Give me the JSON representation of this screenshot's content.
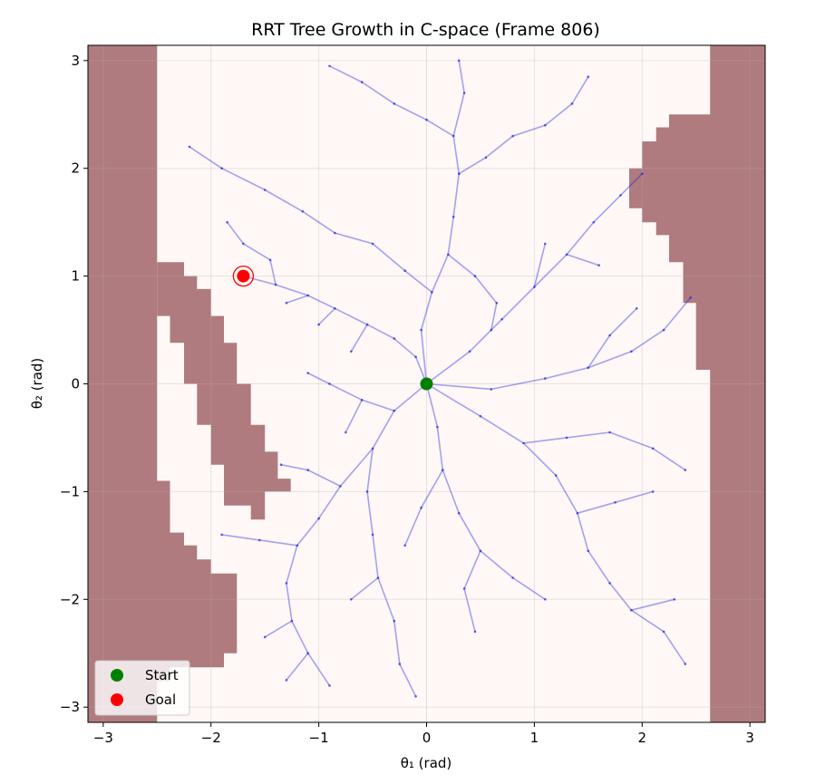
{
  "chart_data": {
    "type": "scatter",
    "title": "RRT Tree Growth in C-space (Frame 806)",
    "xlabel": "θ₁ (rad)",
    "ylabel": "θ₂ (rad)",
    "xlim": [
      -3.1416,
      3.1416
    ],
    "ylim": [
      -3.1416,
      3.1416
    ],
    "xticks": [
      -3,
      -2,
      -1,
      0,
      1,
      2,
      3
    ],
    "yticks": [
      -3,
      -2,
      -1,
      0,
      1,
      2,
      3
    ],
    "xticklabels": [
      "−3",
      "−2",
      "−1",
      "0",
      "1",
      "2",
      "3"
    ],
    "yticklabels": [
      "−3",
      "−2",
      "−1",
      "0",
      "1",
      "2",
      "3"
    ],
    "grid": true,
    "legend": {
      "location": "lower-left",
      "entries": [
        "Start",
        "Goal"
      ]
    },
    "colors": {
      "free_space": "#fff8f6",
      "obstacle": "#b07b7e",
      "tree_edge": "#1f1fe0",
      "start": "#008000",
      "goal": "#ff0000"
    },
    "start": [
      0,
      0
    ],
    "goal": [
      -1.7,
      1.0
    ],
    "obstacles": [
      {
        "name": "left-wall",
        "points": [
          [
            -3.1416,
            3.1416
          ],
          [
            -2.5,
            3.1416
          ],
          [
            -2.5,
            -0.9
          ],
          [
            -2.38,
            -0.9
          ],
          [
            -2.38,
            -1.38
          ],
          [
            -2.25,
            -1.38
          ],
          [
            -2.25,
            -1.5
          ],
          [
            -2.13,
            -1.5
          ],
          [
            -2.13,
            -1.63
          ],
          [
            -2.0,
            -1.63
          ],
          [
            -2.0,
            -1.76
          ],
          [
            -1.76,
            -1.76
          ],
          [
            -1.76,
            -2.5
          ],
          [
            -1.88,
            -2.5
          ],
          [
            -1.88,
            -2.63
          ],
          [
            -2.38,
            -2.63
          ],
          [
            -2.38,
            -2.76
          ],
          [
            -2.5,
            -2.76
          ],
          [
            -2.5,
            -3.1416
          ],
          [
            -3.1416,
            -3.1416
          ]
        ]
      },
      {
        "name": "left-ridge",
        "points": [
          [
            -2.5,
            1.13
          ],
          [
            -2.25,
            1.13
          ],
          [
            -2.25,
            1.0
          ],
          [
            -2.13,
            1.0
          ],
          [
            -2.13,
            0.88
          ],
          [
            -2.0,
            0.88
          ],
          [
            -2.0,
            0.63
          ],
          [
            -1.88,
            0.63
          ],
          [
            -1.88,
            0.38
          ],
          [
            -1.76,
            0.38
          ],
          [
            -1.76,
            0.0
          ],
          [
            -1.63,
            0.0
          ],
          [
            -1.63,
            -0.38
          ],
          [
            -1.5,
            -0.38
          ],
          [
            -1.5,
            -0.63
          ],
          [
            -1.38,
            -0.63
          ],
          [
            -1.38,
            -0.88
          ],
          [
            -1.26,
            -0.88
          ],
          [
            -1.26,
            -1.0
          ],
          [
            -1.5,
            -1.0
          ],
          [
            -1.5,
            -1.13
          ],
          [
            -1.5,
            -1.13
          ],
          [
            -1.5,
            -1.26
          ],
          [
            -1.63,
            -1.26
          ],
          [
            -1.63,
            -1.13
          ],
          [
            -1.88,
            -1.13
          ],
          [
            -1.88,
            -0.75
          ],
          [
            -2.0,
            -0.75
          ],
          [
            -2.0,
            -0.38
          ],
          [
            -2.13,
            -0.38
          ],
          [
            -2.13,
            0.0
          ],
          [
            -2.25,
            0.0
          ],
          [
            -2.25,
            0.38
          ],
          [
            -2.38,
            0.38
          ],
          [
            -2.38,
            0.63
          ],
          [
            -2.5,
            0.63
          ]
        ]
      },
      {
        "name": "right-wall",
        "points": [
          [
            3.1416,
            3.1416
          ],
          [
            2.63,
            3.1416
          ],
          [
            2.63,
            2.5
          ],
          [
            2.25,
            2.5
          ],
          [
            2.25,
            2.38
          ],
          [
            2.13,
            2.38
          ],
          [
            2.13,
            2.25
          ],
          [
            2.0,
            2.25
          ],
          [
            2.0,
            2.0
          ],
          [
            1.88,
            2.0
          ],
          [
            1.88,
            1.63
          ],
          [
            2.0,
            1.63
          ],
          [
            2.0,
            1.5
          ],
          [
            2.13,
            1.5
          ],
          [
            2.13,
            1.38
          ],
          [
            2.25,
            1.38
          ],
          [
            2.25,
            1.13
          ],
          [
            2.38,
            1.13
          ],
          [
            2.38,
            0.75
          ],
          [
            2.5,
            0.75
          ],
          [
            2.5,
            0.13
          ],
          [
            2.63,
            0.13
          ],
          [
            2.63,
            -3.1416
          ],
          [
            3.1416,
            -3.1416
          ]
        ]
      }
    ],
    "tree_edges": [
      [
        [
          0,
          0
        ],
        [
          -0.1,
          0.25
        ]
      ],
      [
        [
          -0.1,
          0.25
        ],
        [
          -0.3,
          0.42
        ]
      ],
      [
        [
          -0.3,
          0.42
        ],
        [
          -0.55,
          0.55
        ]
      ],
      [
        [
          -0.55,
          0.55
        ],
        [
          -0.85,
          0.7
        ]
      ],
      [
        [
          -0.85,
          0.7
        ],
        [
          -1.1,
          0.82
        ]
      ],
      [
        [
          -1.1,
          0.82
        ],
        [
          -1.4,
          0.92
        ]
      ],
      [
        [
          -1.4,
          0.92
        ],
        [
          -1.7,
          1.0
        ]
      ],
      [
        [
          -0.55,
          0.55
        ],
        [
          -0.7,
          0.3
        ]
      ],
      [
        [
          -0.85,
          0.7
        ],
        [
          -1.0,
          0.55
        ]
      ],
      [
        [
          -1.1,
          0.82
        ],
        [
          -1.3,
          0.75
        ]
      ],
      [
        [
          -1.4,
          0.92
        ],
        [
          -1.45,
          1.15
        ]
      ],
      [
        [
          -1.45,
          1.15
        ],
        [
          -1.7,
          1.3
        ]
      ],
      [
        [
          -1.7,
          1.3
        ],
        [
          -1.85,
          1.5
        ]
      ],
      [
        [
          0,
          0
        ],
        [
          -0.05,
          0.5
        ]
      ],
      [
        [
          -0.05,
          0.5
        ],
        [
          0.05,
          0.85
        ]
      ],
      [
        [
          0.05,
          0.85
        ],
        [
          0.2,
          1.2
        ]
      ],
      [
        [
          0.2,
          1.2
        ],
        [
          0.25,
          1.55
        ]
      ],
      [
        [
          0.25,
          1.55
        ],
        [
          0.3,
          1.95
        ]
      ],
      [
        [
          0.3,
          1.95
        ],
        [
          0.25,
          2.3
        ]
      ],
      [
        [
          0.25,
          2.3
        ],
        [
          0.35,
          2.7
        ]
      ],
      [
        [
          0.35,
          2.7
        ],
        [
          0.3,
          3.0
        ]
      ],
      [
        [
          0.3,
          1.95
        ],
        [
          0.55,
          2.1
        ]
      ],
      [
        [
          0.55,
          2.1
        ],
        [
          0.8,
          2.3
        ]
      ],
      [
        [
          0.8,
          2.3
        ],
        [
          1.1,
          2.4
        ]
      ],
      [
        [
          0.25,
          2.3
        ],
        [
          0.0,
          2.45
        ]
      ],
      [
        [
          0.0,
          2.45
        ],
        [
          -0.3,
          2.6
        ]
      ],
      [
        [
          0.05,
          0.85
        ],
        [
          -0.2,
          1.05
        ]
      ],
      [
        [
          -0.2,
          1.05
        ],
        [
          -0.5,
          1.3
        ]
      ],
      [
        [
          -0.5,
          1.3
        ],
        [
          -0.85,
          1.4
        ]
      ],
      [
        [
          -0.85,
          1.4
        ],
        [
          -1.15,
          1.6
        ]
      ],
      [
        [
          -1.15,
          1.6
        ],
        [
          -1.5,
          1.8
        ]
      ],
      [
        [
          -1.5,
          1.8
        ],
        [
          -1.9,
          2.0
        ]
      ],
      [
        [
          -1.9,
          2.0
        ],
        [
          -2.2,
          2.2
        ]
      ],
      [
        [
          0,
          0
        ],
        [
          0.4,
          0.3
        ]
      ],
      [
        [
          0.4,
          0.3
        ],
        [
          0.7,
          0.6
        ]
      ],
      [
        [
          0.7,
          0.6
        ],
        [
          1.0,
          0.9
        ]
      ],
      [
        [
          1.0,
          0.9
        ],
        [
          1.3,
          1.2
        ]
      ],
      [
        [
          1.3,
          1.2
        ],
        [
          1.55,
          1.5
        ]
      ],
      [
        [
          1.55,
          1.5
        ],
        [
          1.8,
          1.75
        ]
      ],
      [
        [
          1.0,
          0.9
        ],
        [
          1.1,
          1.3
        ]
      ],
      [
        [
          1.3,
          1.2
        ],
        [
          1.6,
          1.1
        ]
      ],
      [
        [
          0,
          0
        ],
        [
          0.6,
          -0.05
        ]
      ],
      [
        [
          0.6,
          -0.05
        ],
        [
          1.1,
          0.05
        ]
      ],
      [
        [
          1.1,
          0.05
        ],
        [
          1.5,
          0.15
        ]
      ],
      [
        [
          1.5,
          0.15
        ],
        [
          1.9,
          0.3
        ]
      ],
      [
        [
          1.9,
          0.3
        ],
        [
          2.2,
          0.5
        ]
      ],
      [
        [
          2.2,
          0.5
        ],
        [
          2.45,
          0.8
        ]
      ],
      [
        [
          1.5,
          0.15
        ],
        [
          1.7,
          0.45
        ]
      ],
      [
        [
          1.7,
          0.45
        ],
        [
          1.95,
          0.7
        ]
      ],
      [
        [
          0,
          0
        ],
        [
          0.5,
          -0.3
        ]
      ],
      [
        [
          0.5,
          -0.3
        ],
        [
          0.9,
          -0.55
        ]
      ],
      [
        [
          0.9,
          -0.55
        ],
        [
          1.2,
          -0.85
        ]
      ],
      [
        [
          1.2,
          -0.85
        ],
        [
          1.4,
          -1.2
        ]
      ],
      [
        [
          1.4,
          -1.2
        ],
        [
          1.5,
          -1.55
        ]
      ],
      [
        [
          1.5,
          -1.55
        ],
        [
          1.7,
          -1.85
        ]
      ],
      [
        [
          1.7,
          -1.85
        ],
        [
          1.9,
          -2.1
        ]
      ],
      [
        [
          1.9,
          -2.1
        ],
        [
          2.2,
          -2.3
        ]
      ],
      [
        [
          2.2,
          -2.3
        ],
        [
          2.4,
          -2.6
        ]
      ],
      [
        [
          0.9,
          -0.55
        ],
        [
          1.3,
          -0.5
        ]
      ],
      [
        [
          1.3,
          -0.5
        ],
        [
          1.7,
          -0.45
        ]
      ],
      [
        [
          1.7,
          -0.45
        ],
        [
          2.1,
          -0.6
        ]
      ],
      [
        [
          2.1,
          -0.6
        ],
        [
          2.4,
          -0.8
        ]
      ],
      [
        [
          0,
          0
        ],
        [
          0.1,
          -0.4
        ]
      ],
      [
        [
          0.1,
          -0.4
        ],
        [
          0.15,
          -0.8
        ]
      ],
      [
        [
          0.15,
          -0.8
        ],
        [
          0.3,
          -1.2
        ]
      ],
      [
        [
          0.3,
          -1.2
        ],
        [
          0.5,
          -1.55
        ]
      ],
      [
        [
          0.5,
          -1.55
        ],
        [
          0.8,
          -1.8
        ]
      ],
      [
        [
          0.8,
          -1.8
        ],
        [
          1.1,
          -2.0
        ]
      ],
      [
        [
          0.15,
          -0.8
        ],
        [
          -0.05,
          -1.15
        ]
      ],
      [
        [
          -0.05,
          -1.15
        ],
        [
          -0.2,
          -1.5
        ]
      ],
      [
        [
          0,
          0
        ],
        [
          -0.3,
          -0.25
        ]
      ],
      [
        [
          -0.3,
          -0.25
        ],
        [
          -0.5,
          -0.6
        ]
      ],
      [
        [
          -0.5,
          -0.6
        ],
        [
          -0.8,
          -0.95
        ]
      ],
      [
        [
          -0.8,
          -0.95
        ],
        [
          -1.0,
          -1.25
        ]
      ],
      [
        [
          -1.0,
          -1.25
        ],
        [
          -1.2,
          -1.5
        ]
      ],
      [
        [
          -1.2,
          -1.5
        ],
        [
          -1.3,
          -1.85
        ]
      ],
      [
        [
          -1.3,
          -1.85
        ],
        [
          -1.25,
          -2.2
        ]
      ],
      [
        [
          -1.25,
          -2.2
        ],
        [
          -1.1,
          -2.5
        ]
      ],
      [
        [
          -1.1,
          -2.5
        ],
        [
          -0.9,
          -2.8
        ]
      ],
      [
        [
          -1.2,
          -1.5
        ],
        [
          -1.55,
          -1.45
        ]
      ],
      [
        [
          -1.55,
          -1.45
        ],
        [
          -1.9,
          -1.4
        ]
      ],
      [
        [
          -0.5,
          -0.6
        ],
        [
          -0.55,
          -1.0
        ]
      ],
      [
        [
          -0.55,
          -1.0
        ],
        [
          -0.5,
          -1.4
        ]
      ],
      [
        [
          -0.5,
          -1.4
        ],
        [
          -0.45,
          -1.8
        ]
      ],
      [
        [
          -0.45,
          -1.8
        ],
        [
          -0.3,
          -2.2
        ]
      ],
      [
        [
          -0.3,
          -2.2
        ],
        [
          -0.25,
          -2.6
        ]
      ],
      [
        [
          -0.25,
          -2.6
        ],
        [
          -0.1,
          -2.9
        ]
      ],
      [
        [
          -0.8,
          -0.95
        ],
        [
          -1.1,
          -0.8
        ]
      ],
      [
        [
          -1.1,
          -0.8
        ],
        [
          -1.35,
          -0.75
        ]
      ],
      [
        [
          -0.3,
          -0.25
        ],
        [
          -0.6,
          -0.15
        ]
      ],
      [
        [
          -0.6,
          -0.15
        ],
        [
          -0.9,
          0.0
        ]
      ],
      [
        [
          -0.9,
          0.0
        ],
        [
          -1.1,
          0.1
        ]
      ],
      [
        [
          -0.6,
          -0.15
        ],
        [
          -0.75,
          -0.45
        ]
      ],
      [
        [
          0.2,
          1.2
        ],
        [
          0.45,
          1.0
        ]
      ],
      [
        [
          0.45,
          1.0
        ],
        [
          0.65,
          0.75
        ]
      ],
      [
        [
          0.65,
          0.75
        ],
        [
          0.6,
          0.5
        ]
      ],
      [
        [
          -0.3,
          2.6
        ],
        [
          -0.6,
          2.8
        ]
      ],
      [
        [
          -0.6,
          2.8
        ],
        [
          -0.9,
          2.95
        ]
      ],
      [
        [
          1.1,
          2.4
        ],
        [
          1.35,
          2.6
        ]
      ],
      [
        [
          1.35,
          2.6
        ],
        [
          1.5,
          2.85
        ]
      ],
      [
        [
          1.8,
          1.75
        ],
        [
          2.0,
          1.95
        ]
      ],
      [
        [
          1.9,
          -2.1
        ],
        [
          2.3,
          -2.0
        ]
      ],
      [
        [
          1.4,
          -1.2
        ],
        [
          1.75,
          -1.1
        ]
      ],
      [
        [
          1.75,
          -1.1
        ],
        [
          2.1,
          -1.0
        ]
      ],
      [
        [
          0.5,
          -1.55
        ],
        [
          0.35,
          -1.9
        ]
      ],
      [
        [
          0.35,
          -1.9
        ],
        [
          0.45,
          -2.3
        ]
      ],
      [
        [
          -0.45,
          -1.8
        ],
        [
          -0.7,
          -2.0
        ]
      ],
      [
        [
          -1.25,
          -2.2
        ],
        [
          -1.5,
          -2.35
        ]
      ],
      [
        [
          -1.1,
          -2.5
        ],
        [
          -1.3,
          -2.75
        ]
      ]
    ]
  }
}
